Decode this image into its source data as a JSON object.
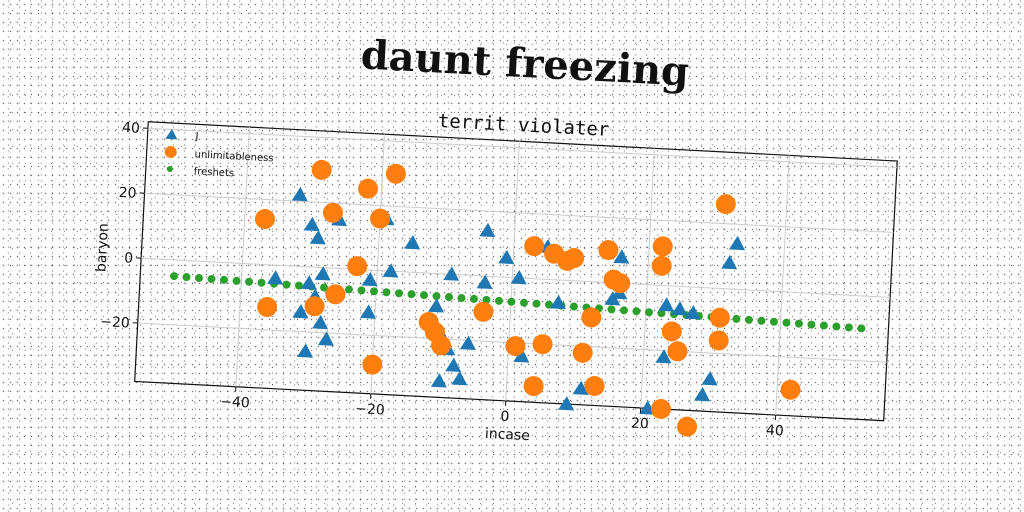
{
  "main_title": "daunt freezing",
  "chart_data": {
    "type": "scatter",
    "title": "territ violater",
    "xlabel": "incase",
    "ylabel": "baryon",
    "xlim": [
      -55,
      56
    ],
    "ylim": [
      -38,
      42
    ],
    "xticks": [
      -40,
      -20,
      0,
      20,
      40
    ],
    "yticks": [
      -20,
      0,
      20,
      40
    ],
    "xtick_labels": [
      "−40",
      "−20",
      "0",
      "20",
      "40"
    ],
    "ytick_labels": [
      "−20",
      "0",
      "20",
      "40"
    ],
    "grid": true,
    "legend_position": "upper-left",
    "series": [
      {
        "name": "J",
        "marker": "triangle",
        "color": "#1f77b4",
        "points": [
          [
            -32,
            22
          ],
          [
            -30,
            13
          ],
          [
            -29,
            9
          ],
          [
            -26,
            15
          ],
          [
            -19,
            16
          ],
          [
            -15,
            9
          ],
          [
            -9,
            0
          ],
          [
            -28,
            -2
          ],
          [
            -21,
            -3
          ],
          [
            -18,
            0
          ],
          [
            -30,
            -5
          ],
          [
            -29,
            -9
          ],
          [
            -31,
            -14
          ],
          [
            -28,
            -17
          ],
          [
            -27,
            -22
          ],
          [
            -30,
            -26
          ],
          [
            -21,
            -13
          ],
          [
            -11,
            -10
          ],
          [
            -10,
            -19
          ],
          [
            -9,
            -23
          ],
          [
            -8,
            -28
          ],
          [
            -7,
            -32
          ],
          [
            -6,
            -21
          ],
          [
            -4,
            -2
          ],
          [
            -4,
            14
          ],
          [
            -1,
            6
          ],
          [
            1,
            0
          ],
          [
            2,
            -24
          ],
          [
            5,
            10
          ],
          [
            7,
            -7
          ],
          [
            7,
            8
          ],
          [
            11,
            -33
          ],
          [
            9,
            -38
          ],
          [
            12,
            -11
          ],
          [
            15,
            -5
          ],
          [
            16,
            -3
          ],
          [
            16,
            8
          ],
          [
            21,
            -38
          ],
          [
            23,
            -22
          ],
          [
            23,
            -6
          ],
          [
            25,
            -7
          ],
          [
            27,
            -8
          ],
          [
            29,
            -33
          ],
          [
            30,
            -28
          ],
          [
            32,
            8
          ],
          [
            33,
            14
          ],
          [
            -35,
            -4
          ],
          [
            -10,
            -33
          ]
        ]
      },
      {
        "name": "unlimitableness",
        "marker": "circle",
        "color": "#ff7f0e",
        "points": [
          [
            -37,
            14
          ],
          [
            -29,
            30
          ],
          [
            -27,
            17
          ],
          [
            -22,
            25
          ],
          [
            -20,
            16
          ],
          [
            -18,
            30
          ],
          [
            -23,
            1
          ],
          [
            -36,
            -13
          ],
          [
            -29,
            -12
          ],
          [
            -26,
            -8
          ],
          [
            -20,
            -29
          ],
          [
            -12,
            -15
          ],
          [
            -11,
            -18
          ],
          [
            -10,
            -22
          ],
          [
            -4,
            -11
          ],
          [
            1,
            -21
          ],
          [
            3,
            10
          ],
          [
            5,
            -20
          ],
          [
            6,
            8
          ],
          [
            8,
            6
          ],
          [
            9,
            7
          ],
          [
            11,
            -22
          ],
          [
            12,
            -11
          ],
          [
            13,
            -32
          ],
          [
            14,
            10
          ],
          [
            15,
            1
          ],
          [
            16,
            0
          ],
          [
            22,
            12
          ],
          [
            22,
            6
          ],
          [
            24,
            -14
          ],
          [
            25,
            -20
          ],
          [
            23,
            -38
          ],
          [
            27,
            -43
          ],
          [
            31,
            26
          ],
          [
            31,
            -9
          ],
          [
            31,
            -16
          ],
          [
            42,
            -30
          ],
          [
            4,
            -33
          ]
        ]
      },
      {
        "name": "freshets",
        "marker": "dot",
        "color": "#2ca02c",
        "x_start": -50,
        "x_end": 52,
        "y_start": -5,
        "y_end": -10,
        "count": 56
      }
    ]
  }
}
